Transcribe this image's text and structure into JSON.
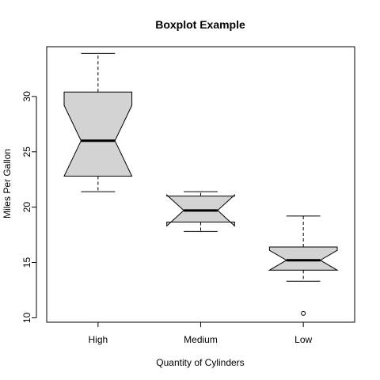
{
  "chart_data": {
    "type": "boxplot",
    "title": "Boxplot Example",
    "xlabel": "Quantity of Cylinders",
    "ylabel": "Miles Per Gallon",
    "notched": true,
    "categories": [
      "High",
      "Medium",
      "Low"
    ],
    "boxes": [
      {
        "category": "High",
        "whisker_low": 21.4,
        "q1": 22.8,
        "median": 26.0,
        "q3": 30.4,
        "whisker_high": 33.9,
        "notch_low": 22.8,
        "notch_high": 29.2,
        "outliers": []
      },
      {
        "category": "Medium",
        "whisker_low": 17.8,
        "q1": 18.65,
        "median": 19.7,
        "q3": 21.0,
        "whisker_high": 21.4,
        "notch_low": 18.3,
        "notch_high": 21.1,
        "outliers": []
      },
      {
        "category": "Low",
        "whisker_low": 13.3,
        "q1": 14.3,
        "median": 15.2,
        "q3": 16.4,
        "whisker_high": 19.2,
        "notch_low": 14.3,
        "notch_high": 16.1,
        "outliers": [
          10.4
        ]
      }
    ],
    "ylim": [
      9.6,
      34.5
    ],
    "yticks": [
      10,
      15,
      20,
      25,
      30
    ],
    "box_fill": "#d3d3d3",
    "line_color": "#000000",
    "grid": false,
    "legend": false
  }
}
